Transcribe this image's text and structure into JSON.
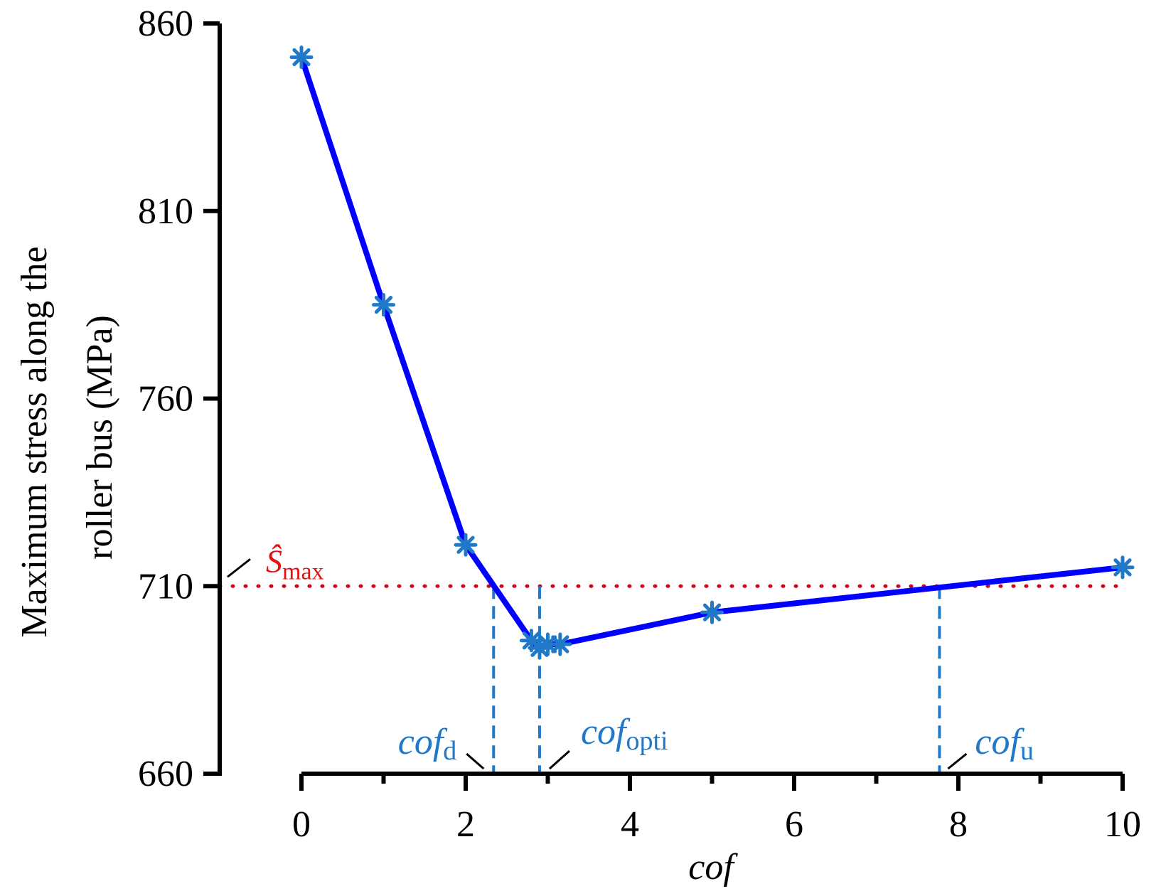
{
  "chart_data": {
    "type": "line",
    "title": "",
    "xlabel": "cof",
    "ylabel_lines": [
      "Maximum stress along the",
      "roller bus (MPa)"
    ],
    "xlim": [
      0,
      10
    ],
    "ylim": [
      660,
      860
    ],
    "x_ticks": [
      0,
      2,
      4,
      6,
      8,
      10
    ],
    "x_tick_labels": [
      "0",
      "2",
      "4",
      "6",
      "8",
      "10"
    ],
    "y_ticks": [
      660,
      710,
      760,
      810,
      860
    ],
    "y_tick_labels": [
      "660",
      "710",
      "760",
      "810",
      "860"
    ],
    "series": [
      {
        "name": "Maximum stress",
        "color": "#0000ff",
        "marker_color": "#1f78c8",
        "x": [
          0,
          1,
          2,
          2.8,
          2.9,
          3.0,
          3.15,
          5,
          10
        ],
        "y": [
          851,
          785,
          721,
          695.5,
          693.5,
          694.5,
          694.5,
          703,
          715
        ]
      }
    ],
    "threshold": {
      "label_main": "Ŝ",
      "label_sub": "max",
      "value": 710,
      "color": "#d0021b"
    },
    "markers": [
      {
        "label_main": "cof",
        "label_sub": "d",
        "x": 2.34,
        "color": "#1f78c8"
      },
      {
        "label_main": "cof",
        "label_sub": "opti",
        "x": 2.9,
        "color": "#1f78c8"
      },
      {
        "label_main": "cof",
        "label_sub": "u",
        "x": 7.77,
        "color": "#1f78c8"
      }
    ]
  }
}
